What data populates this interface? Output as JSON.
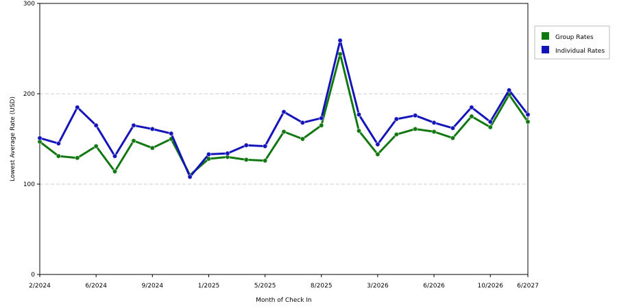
{
  "chart_data": {
    "type": "line",
    "title": "",
    "xlabel": "Month of Check In",
    "ylabel": "Lowest Average Rate (USD)",
    "ylim": [
      0,
      300
    ],
    "yticks": [
      0,
      100,
      200,
      300
    ],
    "grid": true,
    "legend_position": "right",
    "x_tick_labels": [
      "2/2024",
      "6/2024",
      "9/2024",
      "1/2025",
      "5/2025",
      "8/2025",
      "3/2026",
      "6/2026",
      "10/2026",
      "6/2027"
    ],
    "x_tick_indices": [
      0,
      3,
      6,
      9,
      12,
      15,
      18,
      21,
      24,
      26
    ],
    "series": [
      {
        "name": "Group Rates",
        "color": "#117711",
        "values": [
          147,
          131,
          129,
          142,
          114,
          148,
          140,
          150,
          110,
          128,
          130,
          127,
          126,
          158,
          150,
          165,
          244,
          159,
          133,
          155,
          161,
          158,
          151,
          175,
          163,
          199,
          169
        ]
      },
      {
        "name": "Individual Rates",
        "color": "#1414b8",
        "values": [
          151,
          145,
          185,
          165,
          131,
          165,
          161,
          156,
          108,
          133,
          134,
          143,
          142,
          180,
          168,
          173,
          259,
          177,
          144,
          172,
          176,
          168,
          162,
          185,
          169,
          204,
          177
        ]
      }
    ]
  }
}
